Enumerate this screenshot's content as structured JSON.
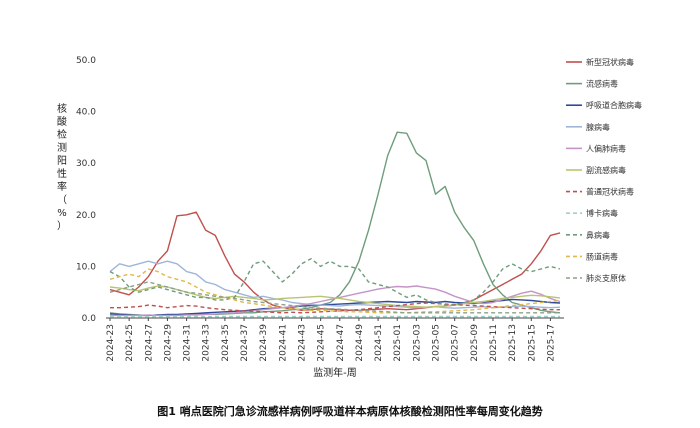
{
  "caption": "图1 哨点医院门急诊流感样病例呼吸道样本病原体核酸检测阳性率每周变化趋势",
  "chart_data": {
    "type": "line",
    "xlabel": "监测年-周",
    "ylabel": "核酸检测阳性率（%）",
    "ylim": [
      0,
      50
    ],
    "yticks": [
      "0.0",
      "10.0",
      "20.0",
      "30.0",
      "40.0",
      "50.0"
    ],
    "grid": false,
    "legend": "right",
    "x": [
      "2024-23",
      "2024-24",
      "2024-25",
      "2024-26",
      "2024-27",
      "2024-28",
      "2024-29",
      "2024-30",
      "2024-31",
      "2024-32",
      "2024-33",
      "2024-34",
      "2024-35",
      "2024-36",
      "2024-37",
      "2024-38",
      "2024-39",
      "2024-40",
      "2024-41",
      "2024-42",
      "2024-43",
      "2024-44",
      "2024-45",
      "2024-46",
      "2024-47",
      "2024-48",
      "2024-49",
      "2024-50",
      "2024-51",
      "2024-52",
      "2025-01",
      "2025-02",
      "2025-03",
      "2025-04",
      "2025-05",
      "2025-06",
      "2025-07",
      "2025-08",
      "2025-09",
      "2025-10",
      "2025-11",
      "2025-12",
      "2025-13",
      "2025-14",
      "2025-15",
      "2025-16",
      "2025-17",
      "2025-18"
    ],
    "xticklabels": [
      "2024-23",
      "2024-25",
      "2024-27",
      "2024-29",
      "2024-31",
      "2024-33",
      "2024-35",
      "2024-37",
      "2024-39",
      "2024-41",
      "2024-43",
      "2024-45",
      "2024-47",
      "2024-49",
      "2024-51",
      "2025-01",
      "2025-03",
      "2025-05",
      "2025-07",
      "2025-09",
      "2025-11",
      "2025-13",
      "2025-15",
      "2025-17"
    ],
    "series": [
      {
        "name": "新型冠状病毒",
        "color": "#c0504d",
        "dash": "solid",
        "values": [
          5.5,
          5.0,
          4.5,
          6.0,
          8.0,
          11.0,
          13.0,
          19.8,
          20.0,
          20.5,
          17.0,
          16.0,
          12.0,
          8.5,
          7.0,
          5.0,
          3.5,
          2.5,
          2.0,
          1.8,
          1.5,
          1.6,
          1.8,
          1.7,
          1.6,
          1.5,
          1.5,
          1.6,
          1.7,
          1.8,
          1.7,
          1.6,
          1.8,
          2.0,
          2.2,
          2.3,
          2.5,
          2.8,
          3.5,
          4.5,
          5.5,
          6.5,
          7.5,
          8.5,
          10.5,
          13.0,
          16.0,
          16.5
        ]
      },
      {
        "name": "流感病毒",
        "color": "#6f9c7c",
        "dash": "solid",
        "values": [
          1.0,
          0.8,
          0.7,
          0.6,
          0.5,
          0.6,
          0.5,
          0.6,
          0.7,
          0.8,
          0.8,
          0.7,
          0.8,
          0.9,
          1.0,
          1.0,
          1.2,
          1.3,
          1.4,
          1.6,
          1.7,
          2.0,
          2.5,
          3.0,
          4.5,
          7.0,
          11.0,
          17.0,
          24.0,
          31.5,
          36.0,
          35.8,
          32.0,
          30.5,
          24.0,
          25.5,
          20.5,
          17.5,
          15.0,
          10.5,
          6.5,
          4.5,
          3.0,
          2.5,
          2.0,
          1.5,
          1.2,
          1.0
        ]
      },
      {
        "name": "呼吸道合胞病毒",
        "color": "#2e4b9b",
        "dash": "solid",
        "values": [
          0.8,
          0.7,
          0.6,
          0.5,
          0.5,
          0.6,
          0.7,
          0.7,
          0.8,
          0.9,
          1.0,
          1.1,
          1.2,
          1.3,
          1.4,
          1.6,
          1.8,
          1.9,
          2.0,
          2.1,
          2.3,
          2.4,
          2.5,
          2.6,
          2.7,
          2.8,
          2.9,
          3.0,
          3.1,
          3.2,
          3.1,
          3.0,
          3.2,
          3.1,
          3.0,
          3.2,
          3.0,
          2.9,
          2.8,
          3.0,
          3.2,
          3.4,
          3.6,
          3.5,
          3.4,
          3.2,
          3.0,
          2.9
        ]
      },
      {
        "name": "腺病毒",
        "color": "#9fb6d9",
        "dash": "solid",
        "values": [
          9.0,
          10.5,
          10.0,
          10.5,
          11.0,
          10.5,
          11.0,
          10.5,
          9.0,
          8.5,
          7.0,
          6.5,
          5.5,
          5.0,
          4.5,
          4.0,
          4.2,
          3.8,
          3.5,
          3.0,
          2.8,
          2.6,
          2.5,
          2.4,
          2.3,
          2.5,
          2.6,
          2.5,
          2.4,
          2.3,
          2.2,
          2.1,
          2.0,
          2.1,
          2.2,
          2.0,
          1.9,
          2.0,
          2.1,
          2.2,
          2.0,
          2.1,
          2.2,
          2.3,
          2.2,
          2.1,
          2.0,
          2.1
        ]
      },
      {
        "name": "人偏肺病毒",
        "color": "#c495c4",
        "dash": "solid",
        "values": [
          0.5,
          0.5,
          0.5,
          0.5,
          0.6,
          0.5,
          0.5,
          0.5,
          0.6,
          0.6,
          0.7,
          0.8,
          0.9,
          1.0,
          1.2,
          1.4,
          1.6,
          1.8,
          2.0,
          2.2,
          2.5,
          2.8,
          3.2,
          3.6,
          4.0,
          4.4,
          4.8,
          5.2,
          5.6,
          5.9,
          6.1,
          6.0,
          6.2,
          5.9,
          5.6,
          5.0,
          4.2,
          3.6,
          3.0,
          2.8,
          3.0,
          3.6,
          4.2,
          4.8,
          5.2,
          4.6,
          3.8,
          3.2
        ]
      },
      {
        "name": "副流感病毒",
        "color": "#b9c470",
        "dash": "solid",
        "values": [
          6.0,
          5.8,
          5.5,
          5.3,
          5.8,
          6.2,
          6.0,
          5.5,
          5.0,
          4.5,
          4.0,
          3.8,
          4.0,
          4.2,
          4.0,
          3.8,
          3.5,
          3.6,
          3.8,
          3.9,
          4.0,
          4.1,
          4.2,
          4.0,
          3.8,
          3.5,
          3.2,
          3.0,
          2.8,
          2.6,
          2.4,
          2.3,
          2.2,
          2.1,
          2.2,
          2.3,
          2.5,
          2.8,
          3.0,
          3.2,
          3.5,
          3.8,
          4.0,
          4.2,
          4.4,
          4.3,
          4.1,
          3.9
        ]
      },
      {
        "name": "普通冠状病毒",
        "color": "#c0504d",
        "dash": "4,3",
        "values": [
          2.0,
          2.0,
          2.1,
          2.2,
          2.5,
          2.3,
          2.0,
          2.2,
          2.4,
          2.3,
          2.0,
          1.8,
          1.6,
          1.5,
          1.4,
          1.3,
          1.2,
          1.1,
          1.0,
          1.1,
          1.0,
          1.1,
          1.2,
          1.3,
          1.4,
          1.5,
          1.6,
          1.8,
          2.0,
          2.2,
          2.4,
          2.6,
          2.8,
          2.9,
          2.8,
          2.7,
          2.6,
          2.5,
          2.4,
          2.3,
          2.2,
          2.1,
          2.0,
          1.9,
          1.8,
          1.7,
          1.6,
          1.6
        ]
      },
      {
        "name": "博卡病毒",
        "color": "#9fd1c8",
        "dash": "4,3",
        "values": [
          0.3,
          0.3,
          0.3,
          0.3,
          0.3,
          0.3,
          0.3,
          0.3,
          0.3,
          0.3,
          0.3,
          0.3,
          0.3,
          0.3,
          0.3,
          0.3,
          0.3,
          0.3,
          0.3,
          0.3,
          0.3,
          0.3,
          0.3,
          0.3,
          0.3,
          0.3,
          0.3,
          0.3,
          0.3,
          0.3,
          0.3,
          0.3,
          0.3,
          0.3,
          0.3,
          0.3,
          0.3,
          0.3,
          0.3,
          0.3,
          0.3,
          0.3,
          0.3,
          0.3,
          0.3,
          0.3,
          0.3,
          0.3
        ]
      },
      {
        "name": "鼻病毒",
        "color": "#6f9c7c",
        "dash": "4,3",
        "values": [
          9.0,
          8.0,
          6.0,
          5.0,
          5.5,
          6.0,
          5.5,
          5.0,
          4.5,
          4.0,
          4.0,
          3.5,
          3.5,
          4.0,
          7.0,
          10.5,
          11.0,
          9.0,
          7.0,
          8.5,
          10.5,
          11.5,
          10.0,
          11.0,
          10.0,
          10.0,
          9.5,
          7.0,
          6.5,
          6.0,
          5.0,
          4.0,
          4.5,
          3.5,
          3.0,
          2.5,
          2.5,
          3.0,
          3.5,
          5.0,
          7.0,
          9.5,
          10.5,
          9.5,
          9.0,
          9.5,
          10.0,
          9.5
        ]
      },
      {
        "name": "肠道病毒",
        "color": "#e0b84a",
        "dash": "4,3",
        "values": [
          7.5,
          8.0,
          8.5,
          8.0,
          9.5,
          9.0,
          8.0,
          7.5,
          7.0,
          6.0,
          5.0,
          4.5,
          4.0,
          3.5,
          3.0,
          2.8,
          2.5,
          2.2,
          2.0,
          1.8,
          1.6,
          1.5,
          1.5,
          1.4,
          1.3,
          1.2,
          1.2,
          1.1,
          1.0,
          1.0,
          1.0,
          1.0,
          1.1,
          1.2,
          1.2,
          1.3,
          1.4,
          1.5,
          1.6,
          1.8,
          2.0,
          2.2,
          2.4,
          2.6,
          2.8,
          3.0,
          3.2,
          3.4
        ]
      },
      {
        "name": "肺炎支原体",
        "color": "#8aa08a",
        "dash": "4,3",
        "values": [
          5.0,
          5.5,
          6.0,
          6.5,
          7.0,
          6.5,
          6.0,
          5.5,
          5.0,
          4.8,
          4.5,
          4.2,
          4.0,
          3.8,
          3.5,
          3.2,
          3.0,
          2.8,
          2.6,
          2.4,
          2.2,
          2.0,
          1.9,
          1.8,
          1.7,
          1.6,
          1.5,
          1.4,
          1.3,
          1.2,
          1.1,
          1.0,
          1.0,
          1.0,
          1.0,
          1.0,
          1.0,
          1.0,
          1.0,
          1.0,
          1.0,
          1.0,
          1.0,
          1.0,
          1.0,
          1.0,
          1.0,
          1.0
        ]
      }
    ]
  }
}
